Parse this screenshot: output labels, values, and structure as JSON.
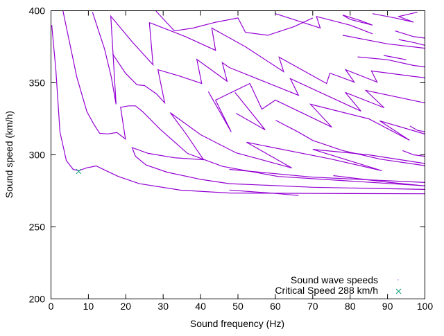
{
  "chart_data": {
    "type": "scatter",
    "title": "",
    "xlabel": "Sound frequency (Hz)",
    "ylabel": "Sound speed (km/h)",
    "xlim": [
      0,
      100
    ],
    "ylim": [
      200,
      400
    ],
    "xticks": [
      "0",
      "10",
      "20",
      "30",
      "40",
      "50",
      "60",
      "70",
      "80",
      "90",
      "100"
    ],
    "yticks": [
      "200",
      "250",
      "300",
      "350",
      "400"
    ],
    "xtick_values": [
      0,
      10,
      20,
      30,
      40,
      50,
      60,
      70,
      80,
      90,
      100
    ],
    "ytick_values": [
      200,
      250,
      300,
      350,
      400
    ],
    "grid": false,
    "legend_placement": "bottom-right",
    "series": [
      {
        "name": "Sound wave speeds",
        "color": "#9400d3",
        "marker": "dot",
        "curves": [
          [
            [
              0.2,
              390
            ],
            [
              1.3,
              359
            ],
            [
              2.4,
              316
            ],
            [
              4.1,
              296
            ],
            [
              5.9,
              290
            ],
            [
              7.4,
              289
            ],
            [
              9.6,
              291
            ],
            [
              12.1,
              292.3
            ],
            [
              14.3,
              289.5
            ],
            [
              18,
              285
            ],
            [
              23.6,
              280
            ],
            [
              34.7,
              275.5
            ],
            [
              47.7,
              273.5
            ],
            [
              70,
              273.2
            ],
            [
              100,
              273
            ]
          ],
          [
            [
              3.2,
              400
            ],
            [
              6.9,
              354
            ],
            [
              9.6,
              330
            ],
            [
              11.5,
              321
            ],
            [
              13,
              315
            ],
            [
              15.2,
              314.5
            ],
            [
              17.6,
              315.5
            ],
            [
              19.9,
              311
            ],
            [
              18.6,
              333
            ],
            [
              20.8,
              334
            ],
            [
              22.6,
              334
            ],
            [
              24.5,
              330
            ],
            [
              29.1,
              318
            ],
            [
              36.5,
              301
            ],
            [
              45.8,
              292
            ],
            [
              60.7,
              285
            ],
            [
              100,
              278.5
            ]
          ],
          [
            [
              100,
              276
            ],
            [
              70,
              277.5
            ],
            [
              47.7,
              280
            ],
            [
              40,
              283
            ],
            [
              31,
              288
            ],
            [
              25.4,
              293
            ],
            [
              22.6,
              299
            ],
            [
              21.7,
              305
            ],
            [
              26,
              301
            ],
            [
              33,
              298
            ],
            [
              40.8,
              296.6
            ],
            [
              36,
              315
            ],
            [
              31.9,
              329.3
            ],
            [
              40,
              314
            ],
            [
              49.5,
              301.4
            ],
            [
              64.4,
              290.9
            ],
            [
              52.3,
              308.7
            ],
            [
              75,
              297
            ],
            [
              88.5,
              289
            ],
            [
              70,
              303.8
            ],
            [
              85,
              300
            ],
            [
              100,
              294
            ]
          ],
          [
            [
              47.7,
              289.9
            ],
            [
              70,
              284.5
            ],
            [
              100,
              280.8
            ]
          ],
          [
            [
              75.5,
              285.6
            ],
            [
              90,
              281
            ],
            [
              100,
              278.4
            ]
          ],
          [
            [
              47.7,
              275.6
            ],
            [
              60,
              273.2
            ],
            [
              66.2,
              271.8
            ]
          ],
          [
            [
              11.1,
              399
            ],
            [
              14.3,
              373.6
            ],
            [
              16.1,
              354.3
            ],
            [
              17.4,
              335.1
            ],
            [
              16.0,
              396.2
            ],
            [
              21.7,
              378.4
            ],
            [
              27.3,
              362.5
            ],
            [
              26.3,
              391.8
            ]
          ],
          [
            [
              26.3,
              391.8
            ],
            [
              36,
              382
            ],
            [
              44,
              372.5
            ],
            [
              43,
              388
            ],
            [
              52,
              375
            ],
            [
              62.2,
              357.7
            ],
            [
              61,
              367.8
            ],
            [
              73.7,
              349.5
            ],
            [
              74.6,
              356.7
            ],
            [
              81.1,
              350.5
            ],
            [
              78.8,
              359.1
            ],
            [
              87.2,
              350.5
            ],
            [
              85.7,
              358.2
            ],
            [
              97.4,
              354.3
            ],
            [
              100,
              353.5
            ]
          ],
          [
            [
              16.5,
              370
            ],
            [
              19.9,
              356.7
            ],
            [
              23,
              348.6
            ],
            [
              25,
              348.1
            ],
            [
              28.2,
              342.3
            ],
            [
              30.4,
              336.1
            ],
            [
              28.6,
              359.1
            ],
            [
              34,
              355
            ],
            [
              40.3,
              349.5
            ],
            [
              39,
              366.3
            ],
            [
              47.1,
              351
            ],
            [
              45.8,
              364
            ],
            [
              47.7,
              360.6
            ],
            [
              66.2,
              341.3
            ],
            [
              64,
              352.9
            ],
            [
              82.9,
              330.3
            ],
            [
              78.7,
              343.3
            ],
            [
              89.1,
              332.7
            ],
            [
              84.2,
              344.7
            ],
            [
              100,
              336
            ]
          ],
          [
            [
              42.1,
              343.8
            ],
            [
              48.2,
              315.9
            ],
            [
              44,
              338
            ],
            [
              53.2,
              349.5
            ],
            [
              56.4,
              331.7
            ],
            [
              60,
              338
            ],
            [
              75.1,
              319.2
            ],
            [
              69.4,
              335.1
            ],
            [
              85,
              325
            ],
            [
              95.9,
              310.1
            ],
            [
              87.9,
              323.6
            ],
            [
              100,
              314.4
            ]
          ],
          [
            [
              49.5,
              328.8
            ],
            [
              57.3,
              317.3
            ],
            [
              49.2,
              343.3
            ]
          ],
          [
            [
              60.1,
              324
            ],
            [
              66,
              316
            ],
            [
              70,
              310
            ],
            [
              78,
              303
            ],
            [
              88,
              297
            ],
            [
              100,
              292.5
            ]
          ],
          [
            [
              28,
              400
            ],
            [
              33,
              386
            ],
            [
              38,
              388
            ],
            [
              44,
              392
            ],
            [
              50,
              395
            ],
            [
              52,
              385
            ],
            [
              58,
              383
            ],
            [
              65,
              389
            ],
            [
              70,
              395
            ]
          ],
          [
            [
              60,
              398
            ],
            [
              66,
              393
            ],
            [
              72,
              388
            ],
            [
              71,
              396
            ],
            [
              80,
              390
            ],
            [
              86,
              384
            ]
          ],
          [
            [
              78,
              397
            ],
            [
              83,
              393
            ],
            [
              86,
              390
            ],
            [
              80,
              394
            ],
            [
              78,
              397
            ]
          ],
          [
            [
              92,
              386
            ],
            [
              97,
              382
            ],
            [
              100,
              381
            ]
          ],
          [
            [
              82,
              368
            ],
            [
              90,
              366
            ],
            [
              97,
              362
            ],
            [
              100,
              361
            ]
          ],
          [
            [
              78,
              383
            ],
            [
              90,
              377
            ],
            [
              100,
              374
            ]
          ],
          [
            [
              89,
              369
            ],
            [
              95,
              366
            ],
            [
              91,
              368
            ],
            [
              89,
              369
            ]
          ],
          [
            [
              93,
              380
            ],
            [
              97,
              378
            ],
            [
              100,
              376
            ]
          ],
          [
            [
              86,
              398
            ],
            [
              92,
              395
            ],
            [
              97,
              392
            ],
            [
              93,
              396
            ],
            [
              98,
              399
            ]
          ],
          [
            [
              94,
              303
            ],
            [
              97,
              300
            ],
            [
              100,
              299
            ]
          ],
          [
            [
              96,
              320
            ],
            [
              98,
              317
            ],
            [
              100,
              316
            ]
          ]
        ]
      },
      {
        "name": "Critical Speed 288 km/h",
        "color": "#009e73",
        "marker": "x",
        "points": [
          [
            7.4,
            288.5
          ]
        ]
      }
    ]
  }
}
